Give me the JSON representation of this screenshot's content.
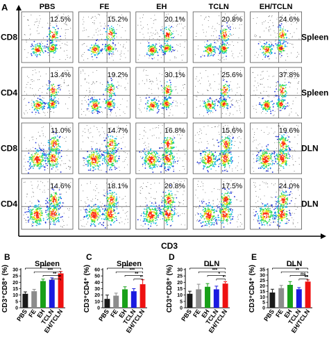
{
  "panel_a": {
    "label": "A",
    "columns": [
      "PBS",
      "FE",
      "EH",
      "TCLN",
      "EH/TCLN"
    ],
    "x_axis_label": "CD3",
    "rows": [
      {
        "marker": "CD8",
        "tissue": "Spleen",
        "percents": [
          "12.5%",
          "15.2%",
          "20.1%",
          "20.8%",
          "24.6%"
        ]
      },
      {
        "marker": "CD4",
        "tissue": "Spleen",
        "percents": [
          "13.4%",
          "19.2%",
          "30.1%",
          "25.6%",
          "37.8%"
        ]
      },
      {
        "marker": "CD8",
        "tissue": "DLN",
        "percents": [
          "11.0%",
          "14.7%",
          "16.8%",
          "15.6%",
          "19.6%"
        ]
      },
      {
        "marker": "CD4",
        "tissue": "DLN",
        "percents": [
          "14.6%",
          "18.1%",
          "20.8%",
          "17.5%",
          "24.0%"
        ]
      }
    ],
    "density_colors": [
      "#1c2fd8",
      "#16b7e6",
      "#2fdc52",
      "#e6e21c",
      "#ff2a10"
    ]
  },
  "chart_data": [
    {
      "type": "bar",
      "panel": "B",
      "title": "Spleen",
      "ylabel": "CD3⁺CD8⁺ (%)",
      "categories": [
        "PBS",
        "FE",
        "EH",
        "TCLN",
        "EH/TCLN"
      ],
      "values": [
        11,
        13,
        21,
        22,
        27
      ],
      "errors": [
        1.5,
        1.5,
        1.5,
        1.5,
        1.5
      ],
      "ylim": [
        0,
        30
      ],
      "yticks": [
        "0",
        "5",
        "10",
        "15",
        "20",
        "25",
        "30"
      ],
      "colors": [
        "#1a1a1a",
        "#8c8c8c",
        "#18a018",
        "#1a1ae0",
        "#ee1111"
      ],
      "significance": [
        "***",
        "***",
        "**",
        "*"
      ]
    },
    {
      "type": "bar",
      "panel": "C",
      "title": "Spleen",
      "ylabel": "CD3⁺CD4⁺ (%)",
      "categories": [
        "PBS",
        "FE",
        "EH",
        "TCLN",
        "EH/TCLN"
      ],
      "values": [
        14,
        19,
        29,
        26,
        37
      ],
      "errors": [
        6,
        4,
        4,
        4,
        7
      ],
      "ylim": [
        0,
        60
      ],
      "yticks": [
        "0",
        "10",
        "20",
        "30",
        "40",
        "50",
        "60"
      ],
      "colors": [
        "#1a1a1a",
        "#8c8c8c",
        "#18a018",
        "#1a1ae0",
        "#ee1111"
      ],
      "significance": [
        "***",
        "***",
        "**",
        "*"
      ]
    },
    {
      "type": "bar",
      "panel": "D",
      "title": "DLN",
      "ylabel": "CD3⁺CD8⁺ (%)",
      "categories": [
        "PBS",
        "FE",
        "EH",
        "TCLN",
        "EH/TCLN"
      ],
      "values": [
        11,
        14.5,
        16.5,
        14.5,
        19
      ],
      "errors": [
        2,
        4,
        2.5,
        2.5,
        1.5
      ],
      "ylim": [
        0,
        30
      ],
      "yticks": [
        "0",
        "5",
        "10",
        "15",
        "20",
        "25",
        "30"
      ],
      "colors": [
        "#1a1a1a",
        "#8c8c8c",
        "#18a018",
        "#1a1ae0",
        "#ee1111"
      ],
      "significance": [
        "***",
        "***",
        "*",
        "*"
      ]
    },
    {
      "type": "bar",
      "panel": "E",
      "title": "DLN",
      "ylabel": "CD3⁺CD4⁺ (%)",
      "categories": [
        "PBS",
        "FE",
        "EH",
        "TCLN",
        "EH/TCLN"
      ],
      "values": [
        14,
        18,
        21,
        17,
        24
      ],
      "errors": [
        3,
        2.5,
        3,
        1.5,
        1.5
      ],
      "ylim": [
        0,
        35
      ],
      "yticks": [
        "0",
        "5",
        "10",
        "15",
        "20",
        "25",
        "30",
        "35"
      ],
      "colors": [
        "#1a1a1a",
        "#8c8c8c",
        "#18a018",
        "#1a1ae0",
        "#ee1111"
      ],
      "significance": [
        "***",
        "**",
        "ns",
        "**"
      ]
    }
  ]
}
